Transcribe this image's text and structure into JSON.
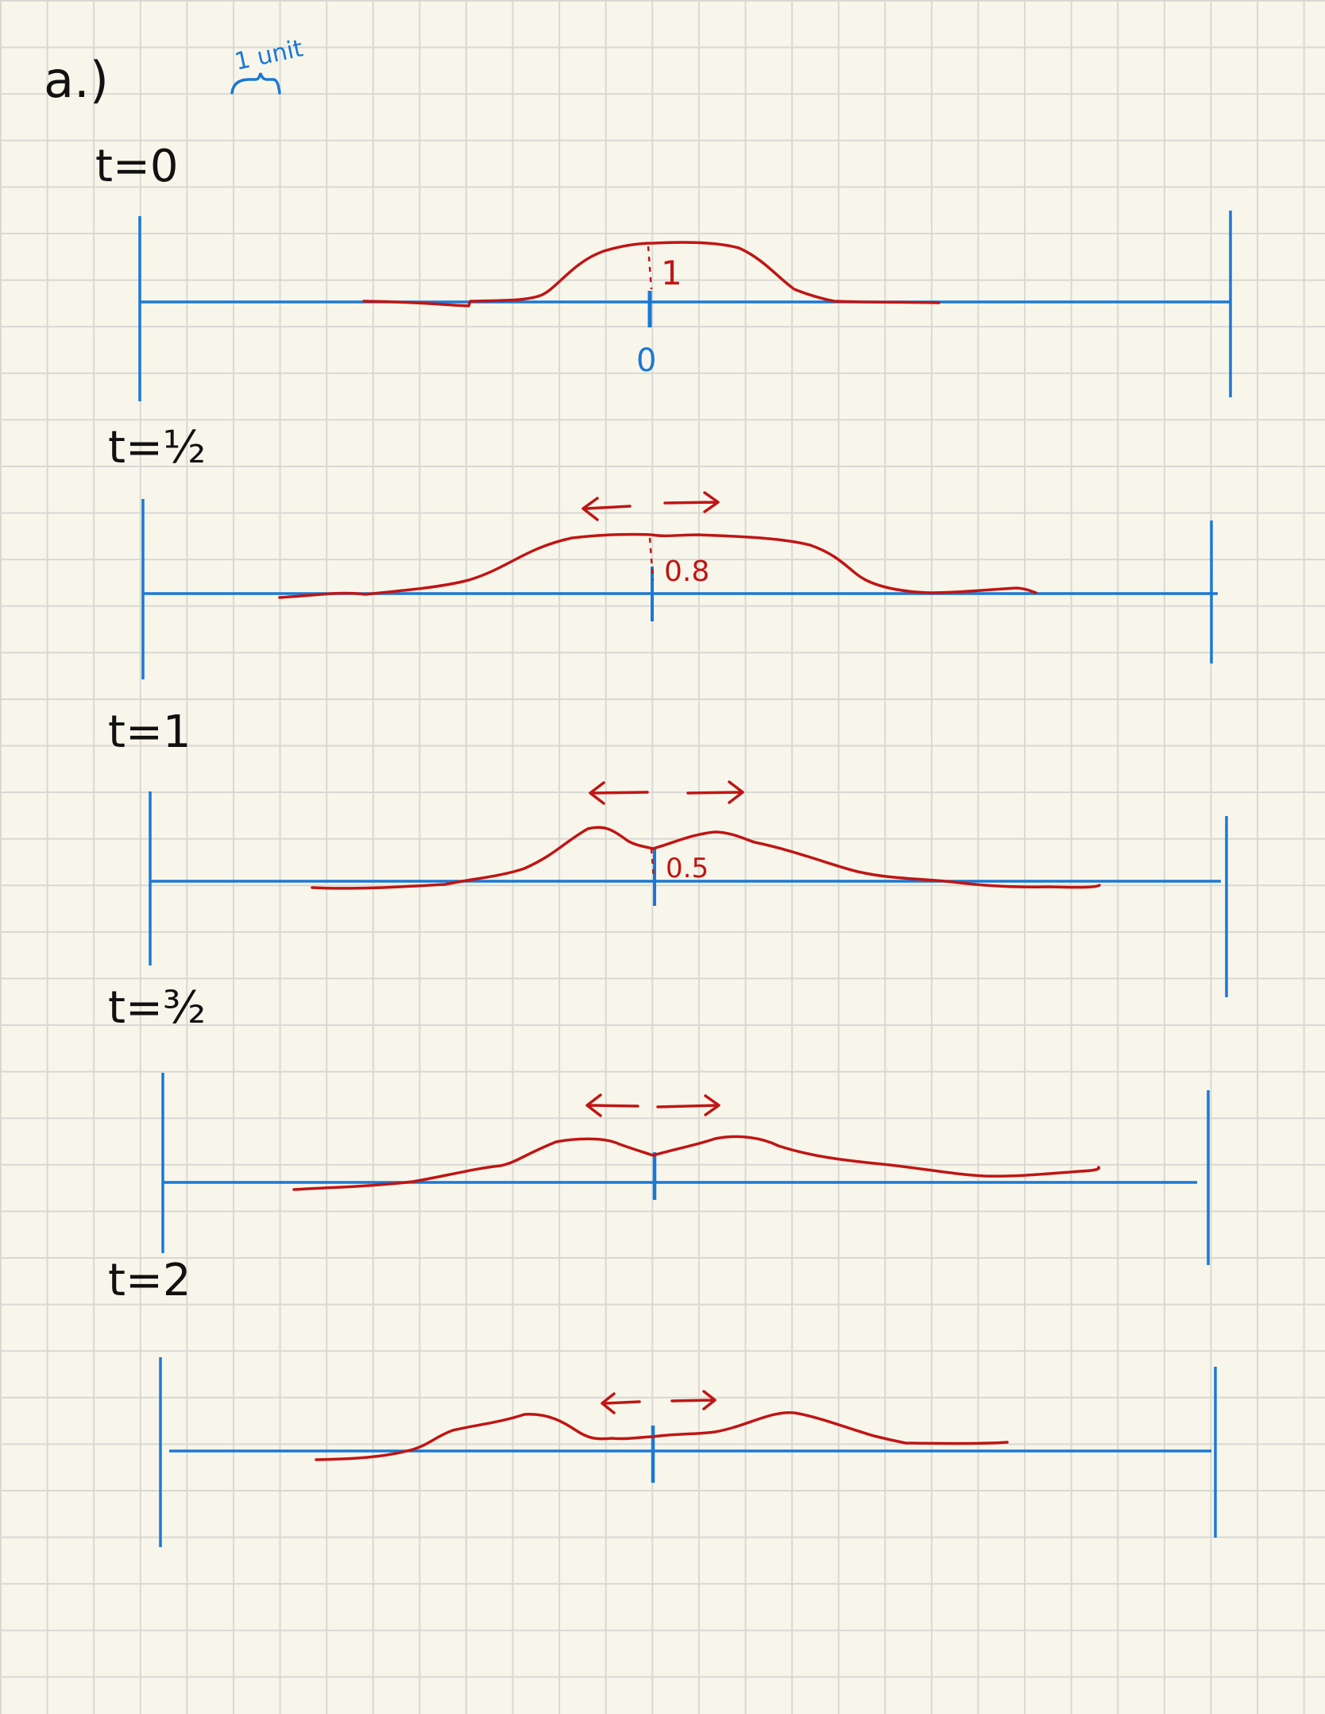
{
  "part_label": "a.)",
  "scale_note": {
    "text": "1 unit"
  },
  "colors": {
    "axis": "#1a78d6",
    "wave": "#c01515",
    "labels": "#111111",
    "paper": "#f8f6ea",
    "grid": "#d8d8d4"
  },
  "panels": [
    {
      "label": "t=0",
      "center_tick_label": "0",
      "peak_label": "1",
      "arrows": false
    },
    {
      "label": "t=½",
      "peak_label": "0.8",
      "arrows": true
    },
    {
      "label": "t=1",
      "peak_label": "0.5",
      "arrows": true
    },
    {
      "label": "t=³⁄₂",
      "arrows": true
    },
    {
      "label": "t=2",
      "arrows": true
    }
  ]
}
